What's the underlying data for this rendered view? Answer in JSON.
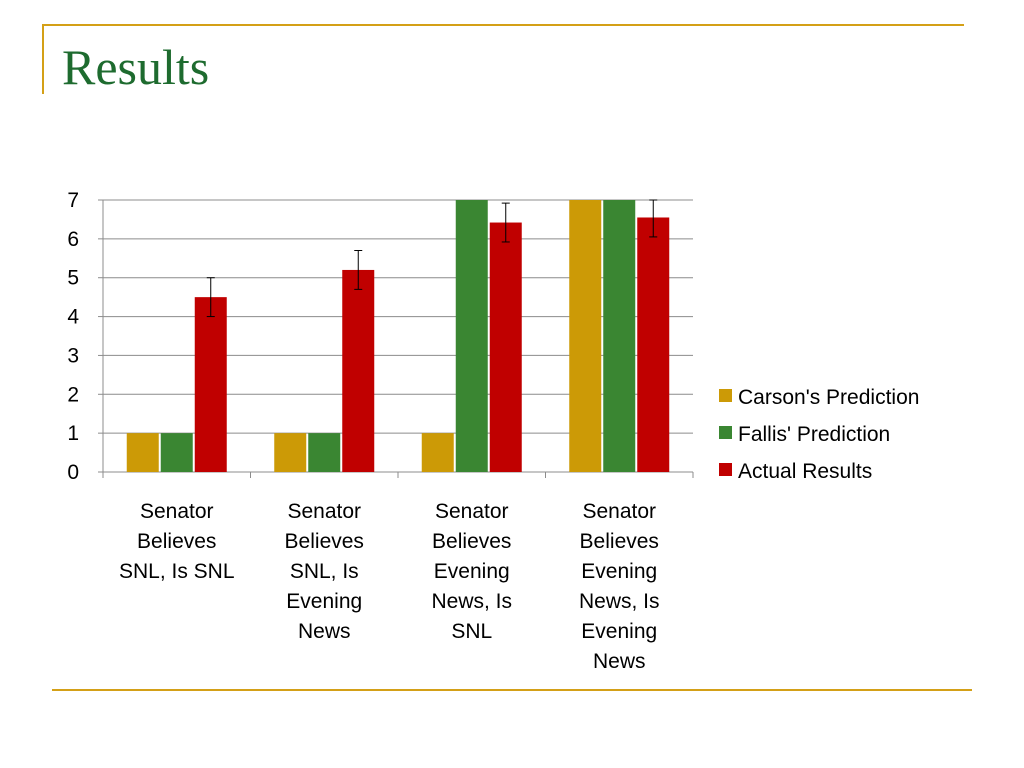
{
  "slide": {
    "title": "Results"
  },
  "colors": {
    "accent": "#d4a017",
    "title": "#1e6b2f"
  },
  "chart_data": {
    "type": "bar",
    "categories": [
      [
        "Senator",
        "Believes",
        "SNL, Is SNL"
      ],
      [
        "Senator",
        "Believes",
        "SNL, Is",
        "Evening",
        "News"
      ],
      [
        "Senator",
        "Believes",
        "Evening",
        "News, Is",
        "SNL"
      ],
      [
        "Senator",
        "Believes",
        "Evening",
        "News, Is",
        "Evening",
        "News"
      ]
    ],
    "series": [
      {
        "name": "Carson's Prediction",
        "color": "#cc9a06",
        "values": [
          1,
          1,
          1,
          7
        ]
      },
      {
        "name": "Fallis' Prediction",
        "color": "#3a8632",
        "values": [
          1,
          1,
          7,
          7
        ]
      },
      {
        "name": "Actual Results",
        "color": "#c00000",
        "values": [
          4.5,
          5.2,
          6.42,
          6.55
        ],
        "error": [
          0.5,
          0.5,
          0.5,
          0.5
        ]
      }
    ],
    "ylim": [
      0,
      7
    ],
    "yticks": [
      "0",
      "1",
      "2",
      "3",
      "4",
      "5",
      "6",
      "7"
    ],
    "grid": true,
    "legend": "right",
    "xlabel": "",
    "ylabel": ""
  }
}
